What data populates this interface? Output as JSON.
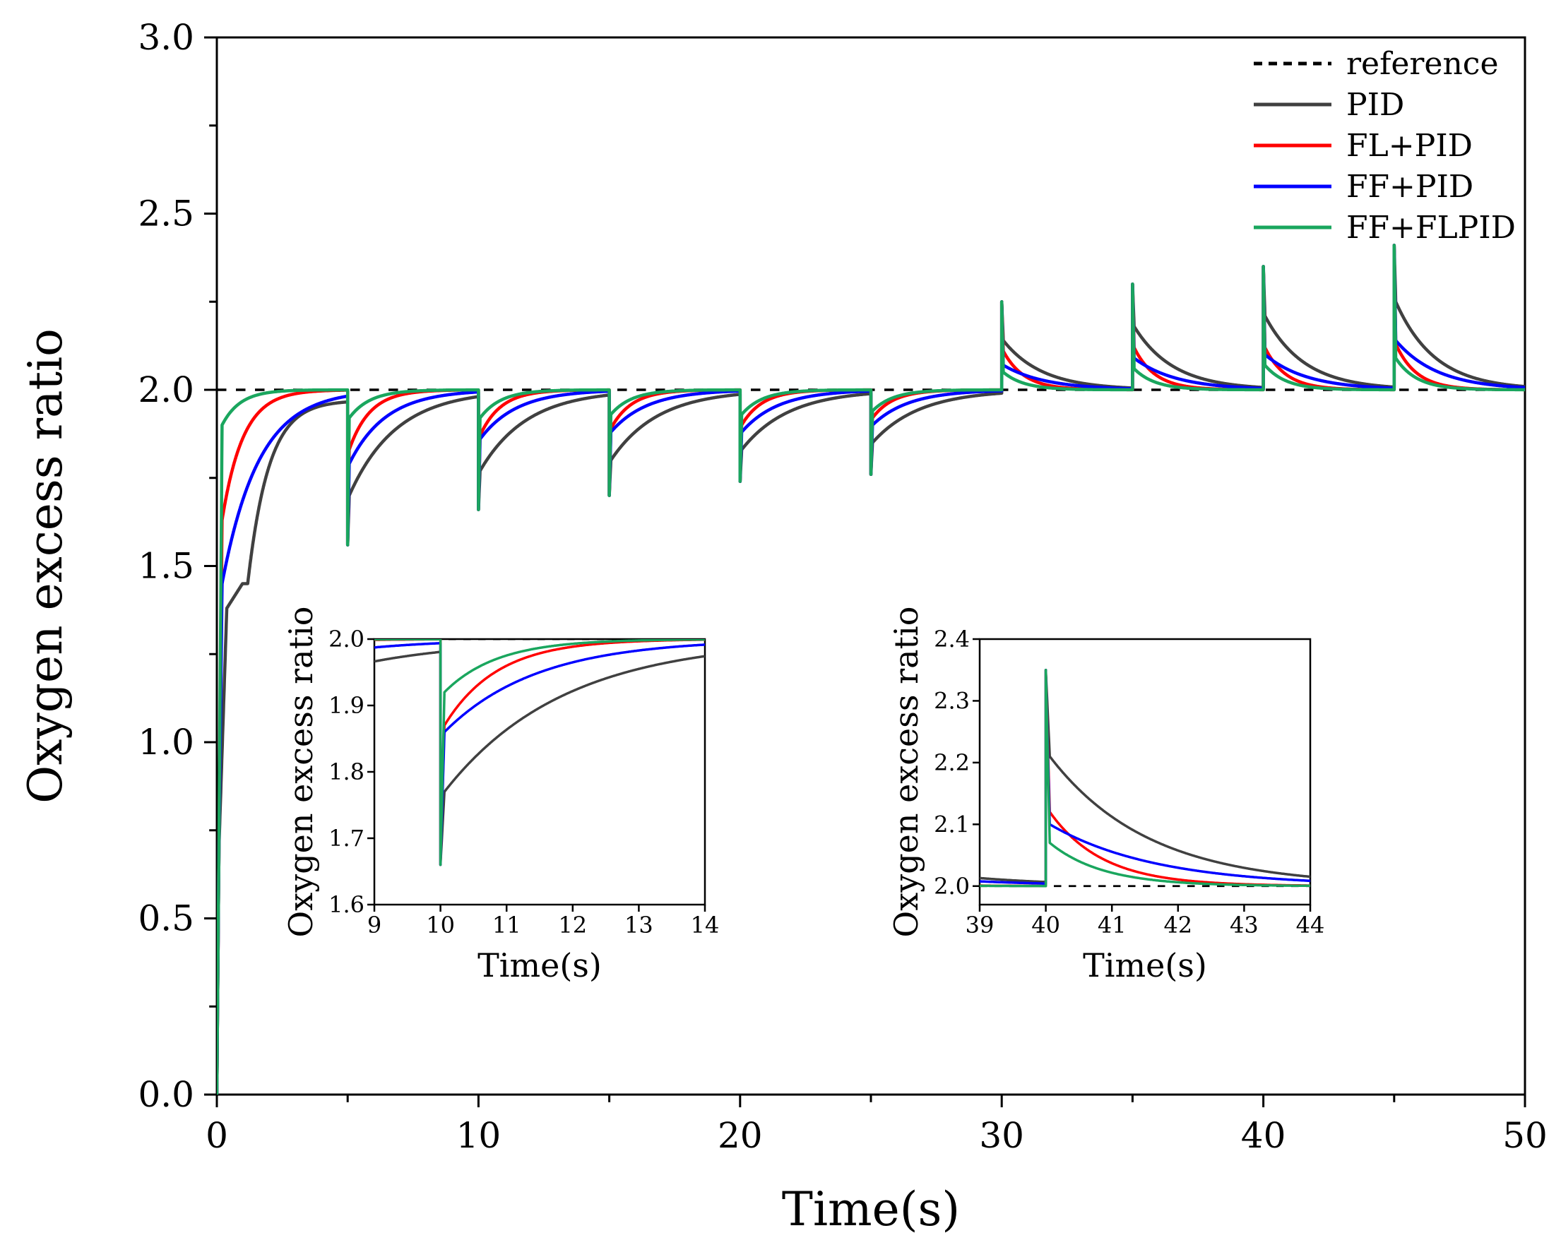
{
  "chart_data": [
    {
      "id": "main",
      "type": "line",
      "title": "",
      "xlabel": "Time(s)",
      "ylabel": "Oxygen excess ratio",
      "xlim": [
        0,
        50
      ],
      "ylim": [
        0,
        3.0
      ],
      "xticks": [
        "0",
        "10",
        "20",
        "30",
        "40",
        "50"
      ],
      "yticks": [
        "0.0",
        "0.5",
        "1.0",
        "1.5",
        "2.0",
        "2.5",
        "3.0"
      ],
      "grid": false,
      "legend_position": "top-right",
      "reference": 2.0,
      "step_times": [
        5,
        10,
        15,
        20,
        25,
        30,
        35,
        40,
        45
      ],
      "series": [
        {
          "name": "reference",
          "color": "#000000",
          "style": "dashed"
        },
        {
          "name": "PID",
          "color": "#404040",
          "startup_plateau": 1.45,
          "startup_tau": 0.8,
          "events": [
            {
              "t": 5,
              "peak": 1.56,
              "after": 1.7,
              "tau": 1.8
            },
            {
              "t": 10,
              "peak": 1.66,
              "after": 1.77,
              "tau": 1.8
            },
            {
              "t": 15,
              "peak": 1.7,
              "after": 1.8,
              "tau": 1.8
            },
            {
              "t": 20,
              "peak": 1.74,
              "after": 1.83,
              "tau": 1.8
            },
            {
              "t": 25,
              "peak": 1.76,
              "after": 1.85,
              "tau": 1.8
            },
            {
              "t": 30,
              "peak": 2.25,
              "after": 2.14,
              "tau": 1.5
            },
            {
              "t": 35,
              "peak": 2.3,
              "after": 2.18,
              "tau": 1.5
            },
            {
              "t": 40,
              "peak": 2.35,
              "after": 2.21,
              "tau": 1.5
            },
            {
              "t": 45,
              "peak": 2.41,
              "after": 2.25,
              "tau": 1.5
            }
          ]
        },
        {
          "name": "FL+PID",
          "color": "#ff0000",
          "startup_start": 1.63,
          "startup_tau": 0.8,
          "events": [
            {
              "t": 5,
              "peak": 1.56,
              "after": 1.83,
              "tau": 0.8
            },
            {
              "t": 10,
              "peak": 1.66,
              "after": 1.87,
              "tau": 0.8
            },
            {
              "t": 15,
              "peak": 1.7,
              "after": 1.89,
              "tau": 0.8
            },
            {
              "t": 20,
              "peak": 1.74,
              "after": 1.9,
              "tau": 0.8
            },
            {
              "t": 25,
              "peak": 1.76,
              "after": 1.92,
              "tau": 0.8
            },
            {
              "t": 30,
              "peak": 2.25,
              "after": 2.11,
              "tau": 0.8
            },
            {
              "t": 35,
              "peak": 2.3,
              "after": 2.12,
              "tau": 0.8
            },
            {
              "t": 40,
              "peak": 2.35,
              "after": 2.12,
              "tau": 0.8
            },
            {
              "t": 45,
              "peak": 2.41,
              "after": 2.13,
              "tau": 0.8
            }
          ]
        },
        {
          "name": "FF+PID",
          "color": "#0000ff",
          "startup_start": 1.45,
          "startup_tau": 1.4,
          "events": [
            {
              "t": 5,
              "peak": 1.56,
              "after": 1.79,
              "tau": 1.4
            },
            {
              "t": 10,
              "peak": 1.66,
              "after": 1.86,
              "tau": 1.4
            },
            {
              "t": 15,
              "peak": 1.7,
              "after": 1.88,
              "tau": 1.4
            },
            {
              "t": 20,
              "peak": 1.74,
              "after": 1.88,
              "tau": 1.4
            },
            {
              "t": 25,
              "peak": 1.76,
              "after": 1.9,
              "tau": 1.4
            },
            {
              "t": 30,
              "peak": 2.25,
              "after": 2.07,
              "tau": 1.6
            },
            {
              "t": 35,
              "peak": 2.3,
              "after": 2.09,
              "tau": 1.6
            },
            {
              "t": 40,
              "peak": 2.35,
              "after": 2.1,
              "tau": 1.6
            },
            {
              "t": 45,
              "peak": 2.41,
              "after": 2.14,
              "tau": 1.6
            }
          ]
        },
        {
          "name": "FF+FLPID",
          "color": "#1aa65e",
          "startup_start": 1.9,
          "startup_tau": 0.7,
          "events": [
            {
              "t": 5,
              "peak": 1.56,
              "after": 1.92,
              "tau": 0.8
            },
            {
              "t": 10,
              "peak": 1.66,
              "after": 1.92,
              "tau": 0.8
            },
            {
              "t": 15,
              "peak": 1.7,
              "after": 1.93,
              "tau": 0.8
            },
            {
              "t": 20,
              "peak": 1.74,
              "after": 1.93,
              "tau": 0.8
            },
            {
              "t": 25,
              "peak": 1.76,
              "after": 1.94,
              "tau": 0.8
            },
            {
              "t": 30,
              "peak": 2.25,
              "after": 2.05,
              "tau": 0.8
            },
            {
              "t": 35,
              "peak": 2.3,
              "after": 2.06,
              "tau": 0.8
            },
            {
              "t": 40,
              "peak": 2.35,
              "after": 2.07,
              "tau": 0.8
            },
            {
              "t": 45,
              "peak": 2.41,
              "after": 2.09,
              "tau": 0.8
            }
          ]
        }
      ]
    },
    {
      "id": "inset-1",
      "type": "line",
      "title": "",
      "xlabel": "Time(s)",
      "ylabel": "Oxygen excess ratio",
      "xlim": [
        9,
        14
      ],
      "ylim": [
        1.6,
        2.0
      ],
      "xticks": [
        "9",
        "10",
        "11",
        "12",
        "13",
        "14"
      ],
      "yticks": [
        "1.6",
        "1.7",
        "1.8",
        "1.9",
        "2.0"
      ],
      "grid": false
    },
    {
      "id": "inset-2",
      "type": "line",
      "title": "",
      "xlabel": "Time(s)",
      "ylabel": "Oxygen excess ratio",
      "xlim": [
        39,
        44
      ],
      "ylim": [
        1.97,
        2.4
      ],
      "xticks": [
        "39",
        "40",
        "41",
        "42",
        "43",
        "44"
      ],
      "yticks": [
        "2.0",
        "2.1",
        "2.2",
        "2.3",
        "2.4"
      ],
      "grid": false
    }
  ]
}
